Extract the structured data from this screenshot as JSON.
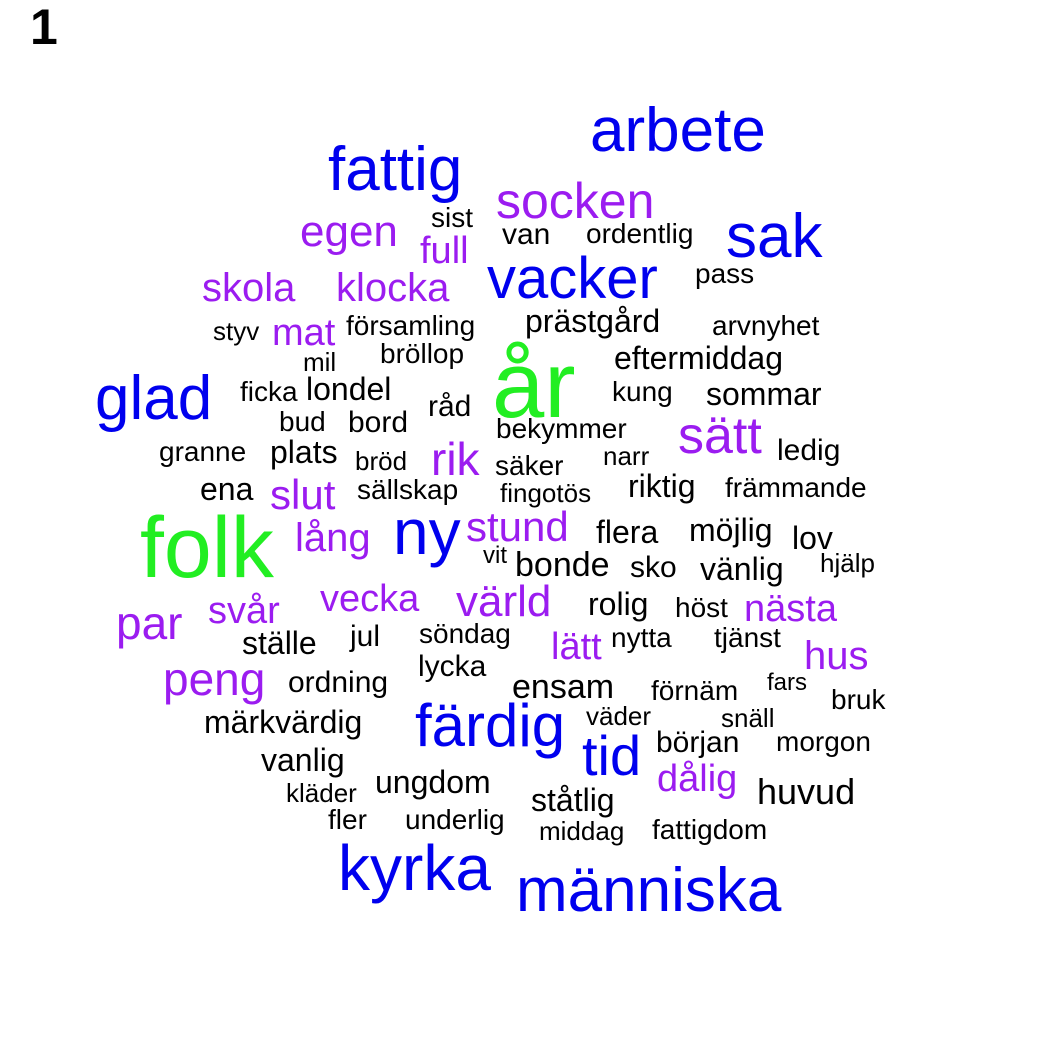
{
  "panel_label": "1",
  "colors": {
    "top": "#22ee22",
    "high": "#0000ee",
    "mid": "#9b1cf0",
    "low": "#000000"
  },
  "words": [
    {
      "text": "år",
      "tier": "top"
    },
    {
      "text": "folk",
      "tier": "top"
    },
    {
      "text": "arbete",
      "tier": "high"
    },
    {
      "text": "fattig",
      "tier": "high"
    },
    {
      "text": "sak",
      "tier": "high"
    },
    {
      "text": "vacker",
      "tier": "high"
    },
    {
      "text": "glad",
      "tier": "high"
    },
    {
      "text": "ny",
      "tier": "high"
    },
    {
      "text": "färdig",
      "tier": "high"
    },
    {
      "text": "tid",
      "tier": "high"
    },
    {
      "text": "kyrka",
      "tier": "high"
    },
    {
      "text": "människa",
      "tier": "high"
    },
    {
      "text": "socken",
      "tier": "mid"
    },
    {
      "text": "egen",
      "tier": "mid"
    },
    {
      "text": "full",
      "tier": "mid"
    },
    {
      "text": "skola",
      "tier": "mid"
    },
    {
      "text": "klocka",
      "tier": "mid"
    },
    {
      "text": "mat",
      "tier": "mid"
    },
    {
      "text": "sätt",
      "tier": "mid"
    },
    {
      "text": "rik",
      "tier": "mid"
    },
    {
      "text": "slut",
      "tier": "mid"
    },
    {
      "text": "lång",
      "tier": "mid"
    },
    {
      "text": "stund",
      "tier": "mid"
    },
    {
      "text": "par",
      "tier": "mid"
    },
    {
      "text": "svår",
      "tier": "mid"
    },
    {
      "text": "vecka",
      "tier": "mid"
    },
    {
      "text": "värld",
      "tier": "mid"
    },
    {
      "text": "nästa",
      "tier": "mid"
    },
    {
      "text": "lätt",
      "tier": "mid"
    },
    {
      "text": "hus",
      "tier": "mid"
    },
    {
      "text": "peng",
      "tier": "mid"
    },
    {
      "text": "dålig",
      "tier": "mid"
    },
    {
      "text": "sist",
      "tier": "low"
    },
    {
      "text": "van",
      "tier": "low"
    },
    {
      "text": "ordentlig",
      "tier": "low"
    },
    {
      "text": "pass",
      "tier": "low"
    },
    {
      "text": "styv",
      "tier": "low"
    },
    {
      "text": "församling",
      "tier": "low"
    },
    {
      "text": "prästgård",
      "tier": "low"
    },
    {
      "text": "arvnyhet",
      "tier": "low"
    },
    {
      "text": "mil",
      "tier": "low"
    },
    {
      "text": "bröllop",
      "tier": "low"
    },
    {
      "text": "eftermiddag",
      "tier": "low"
    },
    {
      "text": "ficka",
      "tier": "low"
    },
    {
      "text": "londel",
      "tier": "low"
    },
    {
      "text": "kung",
      "tier": "low"
    },
    {
      "text": "sommar",
      "tier": "low"
    },
    {
      "text": "råd",
      "tier": "low"
    },
    {
      "text": "bud",
      "tier": "low"
    },
    {
      "text": "bord",
      "tier": "low"
    },
    {
      "text": "bekymmer",
      "tier": "low"
    },
    {
      "text": "granne",
      "tier": "low"
    },
    {
      "text": "plats",
      "tier": "low"
    },
    {
      "text": "bröd",
      "tier": "low"
    },
    {
      "text": "säker",
      "tier": "low"
    },
    {
      "text": "narr",
      "tier": "low"
    },
    {
      "text": "ledig",
      "tier": "low"
    },
    {
      "text": "ena",
      "tier": "low"
    },
    {
      "text": "sällskap",
      "tier": "low"
    },
    {
      "text": "fingotös",
      "tier": "low"
    },
    {
      "text": "riktig",
      "tier": "low"
    },
    {
      "text": "främmande",
      "tier": "low"
    },
    {
      "text": "flera",
      "tier": "low"
    },
    {
      "text": "möjlig",
      "tier": "low"
    },
    {
      "text": "lov",
      "tier": "low"
    },
    {
      "text": "vit",
      "tier": "low"
    },
    {
      "text": "bonde",
      "tier": "low"
    },
    {
      "text": "sko",
      "tier": "low"
    },
    {
      "text": "vänlig",
      "tier": "low"
    },
    {
      "text": "hjälp",
      "tier": "low"
    },
    {
      "text": "rolig",
      "tier": "low"
    },
    {
      "text": "höst",
      "tier": "low"
    },
    {
      "text": "ställe",
      "tier": "low"
    },
    {
      "text": "jul",
      "tier": "low"
    },
    {
      "text": "söndag",
      "tier": "low"
    },
    {
      "text": "nytta",
      "tier": "low"
    },
    {
      "text": "tjänst",
      "tier": "low"
    },
    {
      "text": "lycka",
      "tier": "low"
    },
    {
      "text": "ordning",
      "tier": "low"
    },
    {
      "text": "ensam",
      "tier": "low"
    },
    {
      "text": "förnäm",
      "tier": "low"
    },
    {
      "text": "fars",
      "tier": "low"
    },
    {
      "text": "bruk",
      "tier": "low"
    },
    {
      "text": "märkvärdig",
      "tier": "low"
    },
    {
      "text": "väder",
      "tier": "low"
    },
    {
      "text": "snäll",
      "tier": "low"
    },
    {
      "text": "början",
      "tier": "low"
    },
    {
      "text": "morgon",
      "tier": "low"
    },
    {
      "text": "vanlig",
      "tier": "low"
    },
    {
      "text": "ungdom",
      "tier": "low"
    },
    {
      "text": "huvud",
      "tier": "low"
    },
    {
      "text": "kläder",
      "tier": "low"
    },
    {
      "text": "ståtlig",
      "tier": "low"
    },
    {
      "text": "fler",
      "tier": "low"
    },
    {
      "text": "underlig",
      "tier": "low"
    },
    {
      "text": "middag",
      "tier": "low"
    },
    {
      "text": "fattigdom",
      "tier": "low"
    }
  ]
}
